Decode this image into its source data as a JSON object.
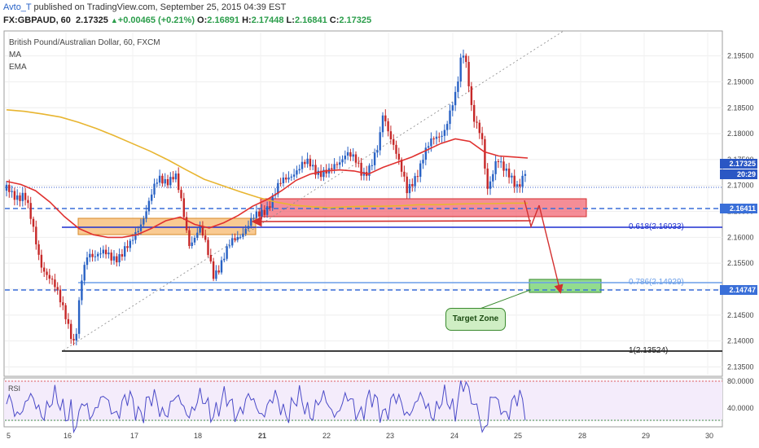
{
  "header": {
    "author": "Avto_T",
    "published": " published on TradingView.com, September 25, 2015 04:39 EST",
    "symbol": "FX:GBPAUD, 60",
    "last": "2.17325",
    "change": "+0.00465 (+0.21%)",
    "open_label": "O:",
    "open": "2.16891",
    "high_label": "H:",
    "high": "2.17448",
    "low_label": "L:",
    "low": "2.16841",
    "close_label": "C:",
    "close": "2.17325"
  },
  "legend": {
    "instrument": "British Pound/Australian Dollar, 60, FXCM",
    "ma": "MA",
    "ema": "EMA"
  },
  "price_tags": {
    "current": "2.17325",
    "countdown": "20:29",
    "level": "2.16411",
    "low_level": "2.14747"
  },
  "fib_labels": {
    "f618": "0.618(2.16033)",
    "f786": "0.786(2.14929)",
    "f1": "1(2.13524)"
  },
  "annotation": {
    "target": "Target Zone"
  },
  "rsi": {
    "label": "RSI",
    "top_tick": "80.0000",
    "bottom_tick": "40.0000"
  },
  "colors": {
    "up_candle": "#2962c4",
    "down_candle": "#c62828",
    "ema": "#e0312f",
    "ma": "#e8b530",
    "rsi": "#4b4bc8",
    "zone_red": "#f15d6b",
    "zone_orange": "#f7b86e",
    "zone_green": "#7fd67a"
  },
  "chart_data": {
    "type": "candlestick",
    "price_axis": [
      "2.19500",
      "2.19000",
      "2.18500",
      "2.18000",
      "2.17500",
      "2.17000",
      "2.16500",
      "2.16000",
      "2.15500",
      "2.15000",
      "2.14500",
      "2.14000",
      "2.13500"
    ],
    "time_axis": [
      "5",
      "16",
      "17",
      "18",
      "21",
      "22",
      "23",
      "24",
      "25",
      "28",
      "29",
      "30"
    ],
    "ylim": [
      2.1335,
      2.1995
    ],
    "levels": {
      "current": 2.17325,
      "resistance": 2.16411,
      "fib618": 2.16033,
      "fib786": 2.14929,
      "fib1": 2.13524,
      "low_dashed": 2.14747
    },
    "series": [
      {
        "name": "EMA",
        "values": [
          2.1708,
          2.1702,
          2.169,
          2.1668,
          2.164,
          2.1617,
          2.1605,
          2.16,
          2.16,
          2.1605,
          2.1617,
          2.1632,
          2.1639,
          2.1625,
          2.1618,
          2.1628,
          2.1642,
          2.166,
          2.1673,
          2.169,
          2.171,
          2.1722,
          2.1728,
          2.173,
          2.1728,
          2.1722,
          2.1735,
          2.1745,
          2.1755,
          2.1768,
          2.1781,
          2.179,
          2.1785,
          2.1765,
          2.1757,
          2.1755,
          2.1753
        ]
      },
      {
        "name": "MA",
        "values": [
          2.1846,
          2.1843,
          2.1838,
          2.1832,
          2.1822,
          2.181,
          2.1796,
          2.1781,
          2.1766,
          2.1749,
          2.173,
          2.1712,
          2.17,
          2.1688,
          2.1677,
          2.1668,
          2.1662,
          2.1659,
          2.1657,
          2.1659,
          2.166,
          2.166,
          2.1661,
          2.1663,
          2.1663,
          2.1664,
          2.1665,
          2.1665,
          2.1666,
          2.1666
        ]
      }
    ],
    "rsi_levels": [
      80,
      40
    ]
  }
}
